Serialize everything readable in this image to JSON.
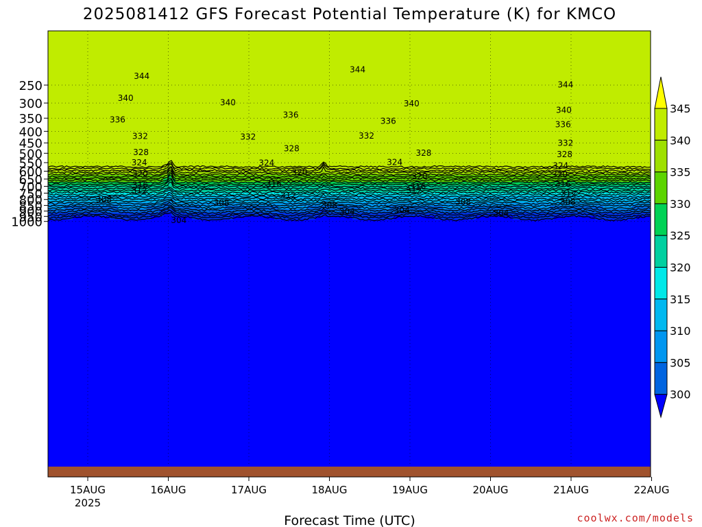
{
  "chart_data": {
    "type": "heatmap",
    "subtype": "time-height filled contour with contour lines",
    "title": "2025081412 GFS Forecast Potential Temperature (K) for KMCO",
    "xlabel": "Forecast Time (UTC)",
    "ylabel": "",
    "y_axis_scale": "log-pressure (hPa, inverted)",
    "ylim": [
      1000,
      200
    ],
    "xlim_days": [
      14.67,
      22.0
    ],
    "x_ticks": [
      {
        "day": 15,
        "label": "15AUG",
        "sublabel": "2025"
      },
      {
        "day": 16,
        "label": "16AUG",
        "sublabel": ""
      },
      {
        "day": 17,
        "label": "17AUG",
        "sublabel": ""
      },
      {
        "day": 18,
        "label": "18AUG",
        "sublabel": ""
      },
      {
        "day": 19,
        "label": "19AUG",
        "sublabel": ""
      },
      {
        "day": 20,
        "label": "20AUG",
        "sublabel": ""
      },
      {
        "day": 21,
        "label": "21AUG",
        "sublabel": ""
      },
      {
        "day": 22,
        "label": "22AUG",
        "sublabel": ""
      }
    ],
    "y_ticks": [
      {
        "p": 250,
        "label": "250"
      },
      {
        "p": 300,
        "label": "300"
      },
      {
        "p": 350,
        "label": "350"
      },
      {
        "p": 400,
        "label": "400"
      },
      {
        "p": 450,
        "label": "450"
      },
      {
        "p": 500,
        "label": "500"
      },
      {
        "p": 550,
        "label": "550"
      },
      {
        "p": 600,
        "label": "600"
      },
      {
        "p": 650,
        "label": "650"
      },
      {
        "p": 700,
        "label": "700"
      },
      {
        "p": 750,
        "label": "750"
      },
      {
        "p": 800,
        "label": "800"
      },
      {
        "p": 850,
        "label": "850"
      },
      {
        "p": 900,
        "label": "900"
      },
      {
        "p": 950,
        "label": "950"
      },
      {
        "p": 1000,
        "label": "1000"
      }
    ],
    "grid": true,
    "colorbar": {
      "position": "right",
      "levels": [
        345,
        340,
        335,
        330,
        325,
        320,
        315,
        310,
        305,
        300
      ],
      "colors": [
        "#ffff00",
        "#c0ec00",
        "#9ee000",
        "#5cd400",
        "#00d255",
        "#00d0a0",
        "#00e8e8",
        "#00b8f0",
        "#0096f0",
        "#0064e0",
        "#0032e0",
        "#0000ff"
      ]
    },
    "isentrope_labels": [
      {
        "label": "344",
        "day": 15.67,
        "p": 227
      },
      {
        "label": "344",
        "day": 18.35,
        "p": 212
      },
      {
        "label": "344",
        "day": 20.93,
        "p": 247
      },
      {
        "label": "340",
        "day": 15.47,
        "p": 283
      },
      {
        "label": "340",
        "day": 16.74,
        "p": 297
      },
      {
        "label": "340",
        "day": 19.02,
        "p": 300
      },
      {
        "label": "340",
        "day": 20.91,
        "p": 320
      },
      {
        "label": "336",
        "day": 15.37,
        "p": 353
      },
      {
        "label": "336",
        "day": 17.52,
        "p": 336
      },
      {
        "label": "336",
        "day": 18.73,
        "p": 358
      },
      {
        "label": "336",
        "day": 20.9,
        "p": 371
      },
      {
        "label": "332",
        "day": 15.65,
        "p": 417
      },
      {
        "label": "332",
        "day": 16.99,
        "p": 421
      },
      {
        "label": "332",
        "day": 18.46,
        "p": 416
      },
      {
        "label": "332",
        "day": 20.93,
        "p": 448
      },
      {
        "label": "328",
        "day": 15.66,
        "p": 492
      },
      {
        "label": "328",
        "day": 17.53,
        "p": 474
      },
      {
        "label": "328",
        "day": 19.17,
        "p": 496
      },
      {
        "label": "328",
        "day": 20.92,
        "p": 503
      },
      {
        "label": "324",
        "day": 15.64,
        "p": 546
      },
      {
        "label": "324",
        "day": 17.22,
        "p": 549
      },
      {
        "label": "324",
        "day": 18.81,
        "p": 544
      },
      {
        "label": "324",
        "day": 20.87,
        "p": 564
      },
      {
        "label": "320",
        "day": 15.65,
        "p": 612
      },
      {
        "label": "320",
        "day": 17.63,
        "p": 602
      },
      {
        "label": "320",
        "day": 19.12,
        "p": 628
      },
      {
        "label": "320",
        "day": 20.86,
        "p": 617
      },
      {
        "label": "316",
        "day": 15.65,
        "p": 685
      },
      {
        "label": "316",
        "day": 17.31,
        "p": 677
      },
      {
        "label": "316",
        "day": 19.1,
        "p": 698
      },
      {
        "label": "316",
        "day": 20.9,
        "p": 680
      },
      {
        "label": "312",
        "day": 15.64,
        "p": 727
      },
      {
        "label": "312",
        "day": 17.49,
        "p": 764
      },
      {
        "label": "312",
        "day": 19.05,
        "p": 727
      },
      {
        "label": "312",
        "day": 20.97,
        "p": 749
      },
      {
        "label": "308",
        "day": 15.2,
        "p": 797
      },
      {
        "label": "308",
        "day": 16.66,
        "p": 821
      },
      {
        "label": "308",
        "day": 18.0,
        "p": 846
      },
      {
        "label": "308",
        "day": 19.66,
        "p": 816
      },
      {
        "label": "308",
        "day": 20.96,
        "p": 816
      },
      {
        "label": "304",
        "day": 18.22,
        "p": 900
      },
      {
        "label": "304",
        "day": 18.9,
        "p": 887
      },
      {
        "label": "304",
        "day": 20.13,
        "p": 913
      },
      {
        "label": "304",
        "day": 16.13,
        "p": 983
      }
    ]
  },
  "footer": {
    "credit": "coolwx.com/models"
  }
}
